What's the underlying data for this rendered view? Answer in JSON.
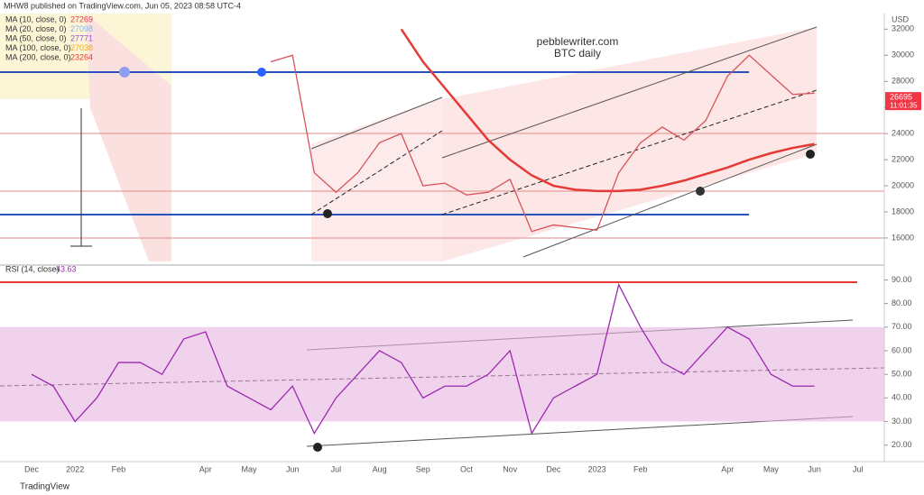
{
  "header": "MHW8 published on TradingView.com, Jun 05, 2023 08:58 UTC-4",
  "footer": "TradingView",
  "chart_data": [
    {
      "type": "line",
      "watermark": [
        "pebblewriter.com",
        "BTC daily"
      ],
      "currency": "USD",
      "last_price": 26695,
      "countdown": "11:01:35",
      "last_color": "#f23645",
      "categories": [
        "Dec",
        null,
        "2022",
        null,
        "Feb",
        null,
        null,
        null,
        "Apr",
        null,
        "May",
        null,
        "Jun",
        null,
        "Jul",
        null,
        "Aug",
        null,
        "Sep",
        null,
        "Oct",
        null,
        "Nov",
        null,
        "Dec",
        null,
        "2023",
        null,
        "Feb",
        null,
        null,
        null,
        "Apr",
        null,
        "May",
        null,
        "Jun",
        null,
        "Jul",
        null
      ],
      "series": [
        {
          "color": "#d8535a",
          "values": [
            null,
            null,
            null,
            null,
            null,
            null,
            null,
            null,
            null,
            null,
            null,
            29500,
            30000,
            21000,
            19500,
            21000,
            23300,
            24000,
            20000,
            20200,
            19300,
            19500,
            20500,
            16500,
            17000,
            16800,
            16600,
            21000,
            23300,
            24500,
            23500,
            25000,
            28400,
            30000,
            28500,
            27000,
            27100,
            null,
            null,
            null
          ]
        }
      ],
      "indicators": [
        {
          "name": "MA (10, close, 0)",
          "value": 27269,
          "color": "#f23645"
        },
        {
          "name": "MA (20, close, 0)",
          "value": 27098,
          "color": "#7fb2f0"
        },
        {
          "name": "MA (50, close, 0)",
          "value": 27771,
          "color": "#9c4fd6"
        },
        {
          "name": "MA (100, close, 0)",
          "value": 27038,
          "color": "#f5a623"
        },
        {
          "name": "MA (200, close, 0)",
          "value": 23264,
          "color": "#e53935",
          "values": [
            null,
            null,
            null,
            null,
            null,
            null,
            null,
            null,
            null,
            null,
            null,
            null,
            null,
            null,
            null,
            null,
            null,
            32000,
            29500,
            27500,
            25500,
            23500,
            22000,
            20800,
            20000,
            19700,
            19600,
            19600,
            19700,
            20000,
            20400,
            20900,
            21400,
            22000,
            22500,
            22900,
            23200,
            null,
            null,
            null
          ]
        }
      ],
      "ylim": [
        14200,
        33200
      ],
      "yticks": [
        16000,
        18000,
        20000,
        22000,
        24000,
        26000,
        28000,
        30000,
        32000
      ]
    },
    {
      "type": "line",
      "title": "RSI (14, close)",
      "last_value": 43.63,
      "series": [
        {
          "color": "#9c27b0",
          "values": [
            50,
            45,
            30,
            40,
            55,
            55,
            50,
            65,
            68,
            45,
            40,
            35,
            45,
            25,
            40,
            50,
            60,
            55,
            40,
            45,
            45,
            50,
            60,
            25,
            40,
            45,
            50,
            88,
            70,
            55,
            50,
            60,
            70,
            65,
            50,
            45,
            45,
            null,
            null,
            null
          ]
        }
      ],
      "band": [
        30,
        70
      ],
      "band_color": "#e8b4e0",
      "ylim": [
        13,
        94
      ],
      "yticks": [
        {
          "value": 20,
          "label": "20.00"
        },
        {
          "value": 30,
          "label": "30.00"
        },
        {
          "value": 40,
          "label": "40.00"
        },
        {
          "value": 50,
          "label": "50.00"
        },
        {
          "value": 60,
          "label": "60.00"
        },
        {
          "value": 70,
          "label": "70.00"
        },
        {
          "value": 80,
          "label": "80.00"
        },
        {
          "value": 90,
          "label": "90.00"
        }
      ]
    }
  ]
}
